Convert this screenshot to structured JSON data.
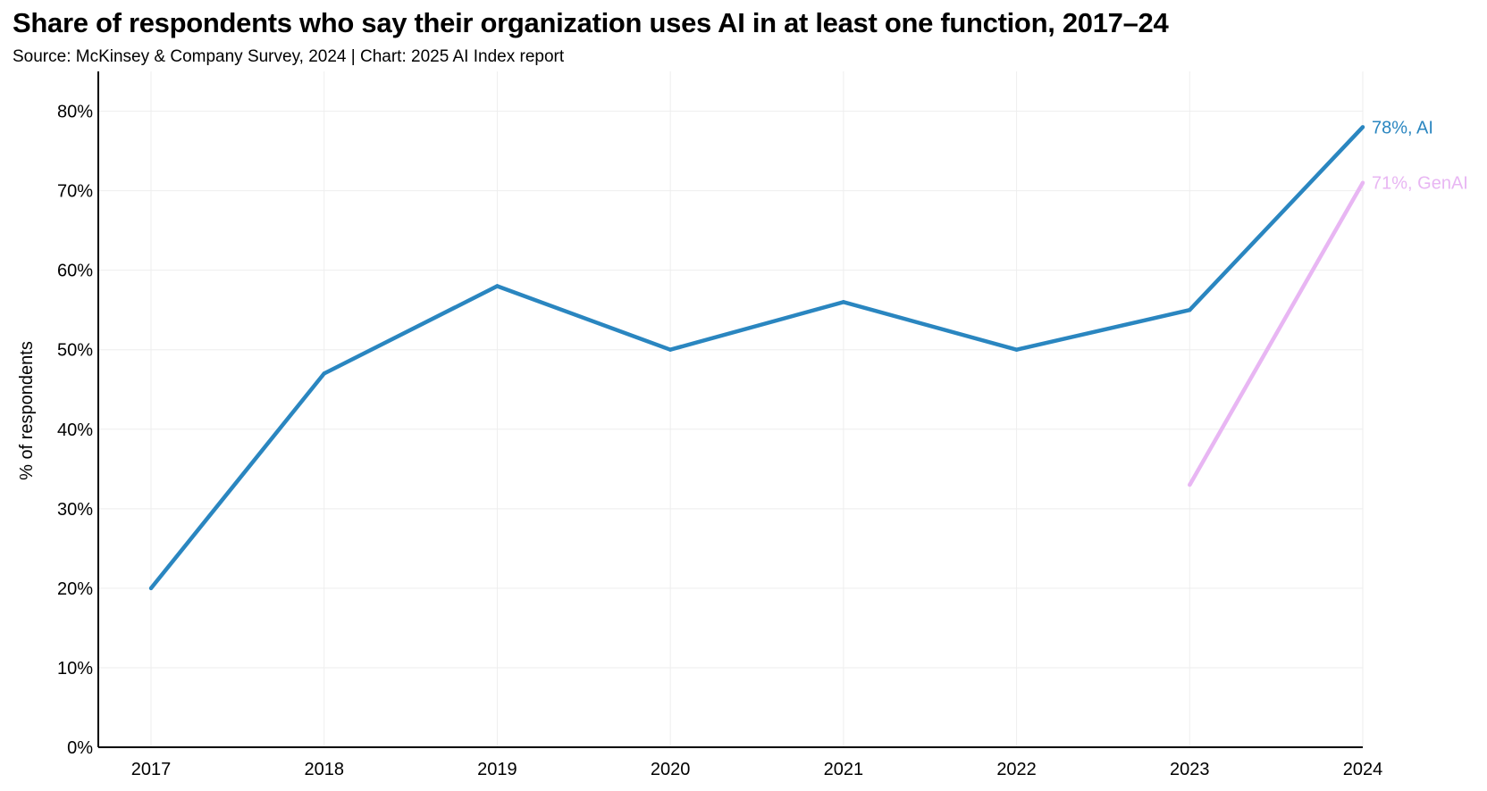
{
  "title": "Share of respondents who say their organization uses AI in at least one function, 2017–24",
  "subtitle": "Source: McKinsey & Company Survey, 2024 | Chart: 2025 AI Index report",
  "chart_data": {
    "type": "line",
    "title": "Share of respondents who say their organization uses AI in at least one function, 2017–24",
    "subtitle": "Source: McKinsey & Company Survey, 2024 | Chart: 2025 AI Index report",
    "xlabel": "",
    "ylabel": "% of respondents",
    "x": [
      2017,
      2018,
      2019,
      2020,
      2021,
      2022,
      2023,
      2024
    ],
    "ylim": [
      0,
      85
    ],
    "yticks": [
      0,
      10,
      20,
      30,
      40,
      50,
      60,
      70,
      80
    ],
    "ytick_labels": [
      "0%",
      "10%",
      "20%",
      "30%",
      "40%",
      "50%",
      "60%",
      "70%",
      "80%"
    ],
    "grid": true,
    "legend": "none (direct end-of-line labels)",
    "series": [
      {
        "name": "AI",
        "color": "#2a86c0",
        "x": [
          2017,
          2018,
          2019,
          2020,
          2021,
          2022,
          2023,
          2024
        ],
        "values": [
          20,
          47,
          58,
          50,
          56,
          50,
          55,
          78
        ],
        "end_label": "78%, AI"
      },
      {
        "name": "GenAI",
        "color": "#e8b6f3",
        "x": [
          2023,
          2024
        ],
        "values": [
          33,
          71
        ],
        "end_label": "71%, GenAI"
      }
    ]
  }
}
